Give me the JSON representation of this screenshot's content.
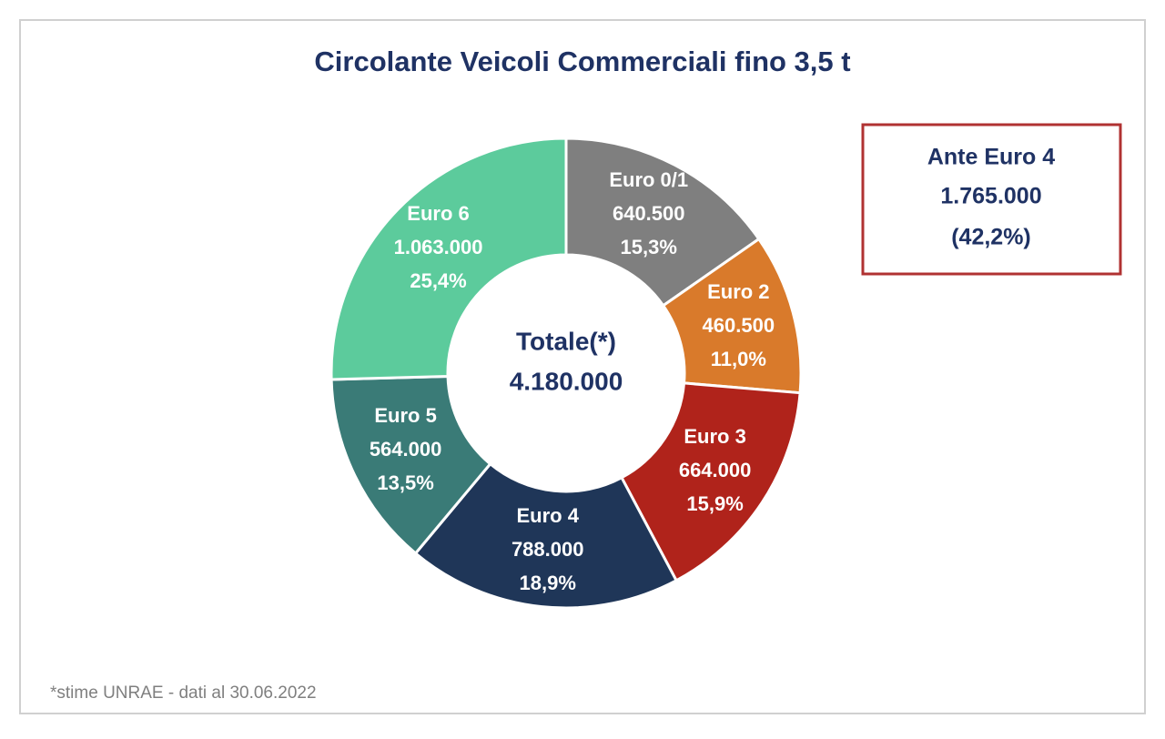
{
  "chart_data": {
    "type": "donut",
    "title": "Circolante Veicoli Commerciali fino 3,5 t",
    "categories": [
      "Euro 0/1",
      "Euro 2",
      "Euro 3",
      "Euro 4",
      "Euro 5",
      "Euro 6"
    ],
    "values": [
      640500,
      460500,
      664000,
      788000,
      564000,
      1063000
    ],
    "value_labels": [
      "640.500",
      "460.500",
      "664.000",
      "788.000",
      "564.000",
      "1.063.000"
    ],
    "percent_labels": [
      "15,3%",
      "11,0%",
      "15,9%",
      "18,9%",
      "13,5%",
      "25,4%"
    ],
    "colors": [
      "#7f7f7f",
      "#d97a2b",
      "#b0231b",
      "#1f3658",
      "#3a7b77",
      "#5ccb9c"
    ],
    "center_title": "Totale(*)",
    "center_value": "4.180.000",
    "callout": {
      "title": "Ante Euro 4",
      "value": "1.765.000",
      "share": "(42,2%)"
    },
    "note": "*stime UNRAE - dati al 30.06.2022"
  }
}
